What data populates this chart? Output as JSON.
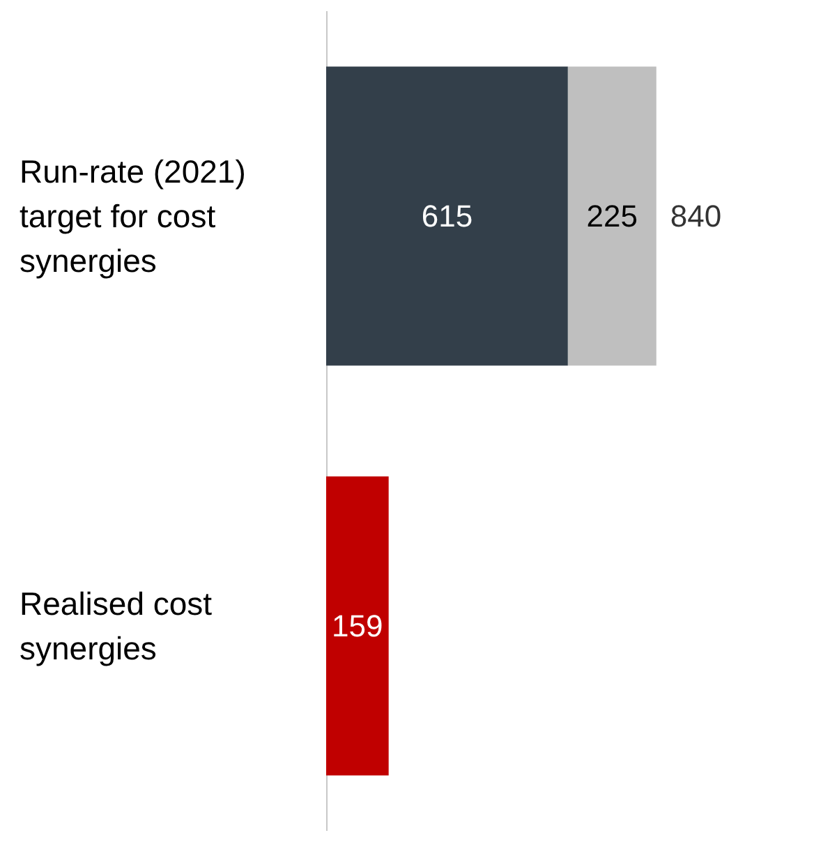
{
  "chart_data": {
    "type": "bar",
    "orientation": "horizontal",
    "stacked": true,
    "categories": [
      "Run-rate (2021) target for cost synergies",
      "Realised cost synergies"
    ],
    "series": [
      {
        "colors": [
          "#333f4a",
          "#c00000"
        ],
        "values": [
          615,
          159
        ]
      },
      {
        "color": "#bfbfbf",
        "values": [
          225,
          null
        ]
      }
    ],
    "totals": [
      "840",
      null
    ],
    "data_labels": true,
    "tick_labels": "y",
    "grid": false
  }
}
